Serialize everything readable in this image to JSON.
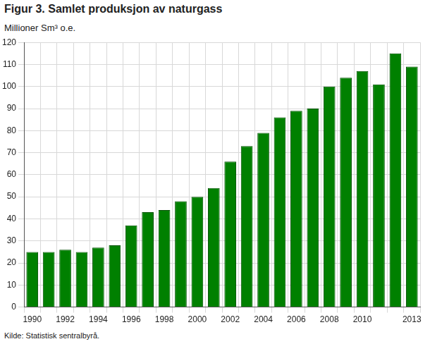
{
  "chart_data": {
    "type": "bar",
    "title": "Figur 3. Samlet produksjon av naturgass",
    "subtitle": "Millioner Sm³ o.e.",
    "source": "Kilde: Statistisk sentralbyrå.",
    "categories": [
      "1990",
      null,
      "1992",
      null,
      "1994",
      null,
      "1996",
      null,
      "1998",
      null,
      "2000",
      null,
      "2002",
      null,
      "2004",
      null,
      "2006",
      null,
      "2008",
      null,
      "2010",
      null,
      null,
      "2013"
    ],
    "values": [
      25,
      25,
      26,
      25,
      27,
      28,
      37,
      43,
      44,
      48,
      50,
      54,
      66,
      73,
      79,
      86,
      89,
      90,
      100,
      104,
      107,
      101,
      115,
      109
    ],
    "color": "#008000",
    "ylim": [
      0,
      120
    ],
    "yticks": [
      0,
      10,
      20,
      30,
      40,
      50,
      60,
      70,
      80,
      90,
      100,
      110,
      120
    ],
    "grid": true
  }
}
